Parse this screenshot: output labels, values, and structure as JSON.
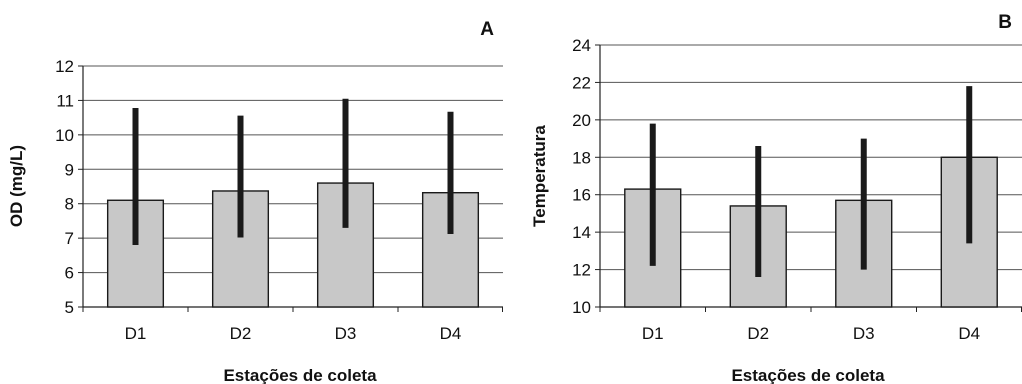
{
  "chart_data": [
    {
      "type": "bar",
      "panel": "A",
      "categories": [
        "D1",
        "D2",
        "D3",
        "D4"
      ],
      "values": [
        8.1,
        8.37,
        8.6,
        8.32
      ],
      "error_low": [
        6.8,
        7.02,
        7.3,
        7.12
      ],
      "error_high": [
        10.78,
        10.56,
        11.05,
        10.67
      ],
      "xlabel": "Estações de coleta",
      "ylabel": "OD (mg/L)",
      "ylim": [
        5,
        12
      ],
      "yticks": [
        "5",
        "6",
        "7",
        "8",
        "9",
        "10",
        "11",
        "12"
      ],
      "grid": true,
      "colors": {
        "bar_fill": "#c8c8c8",
        "bar_stroke": "#1a1a1a",
        "error_bar": "#1a1a1a",
        "grid": "#555555"
      }
    },
    {
      "type": "bar",
      "panel": "B",
      "categories": [
        "D1",
        "D2",
        "D3",
        "D4"
      ],
      "values": [
        16.3,
        15.4,
        15.7,
        18.0
      ],
      "error_low": [
        12.2,
        11.6,
        12.0,
        13.4
      ],
      "error_high": [
        19.8,
        18.6,
        19.0,
        21.8
      ],
      "xlabel": "Estações de coleta",
      "ylabel": "Temperatura",
      "ylim": [
        10,
        24
      ],
      "yticks": [
        "10",
        "12",
        "14",
        "16",
        "18",
        "20",
        "22",
        "24"
      ],
      "grid": true,
      "colors": {
        "bar_fill": "#c8c8c8",
        "bar_stroke": "#1a1a1a",
        "error_bar": "#1a1a1a",
        "grid": "#555555"
      }
    }
  ]
}
